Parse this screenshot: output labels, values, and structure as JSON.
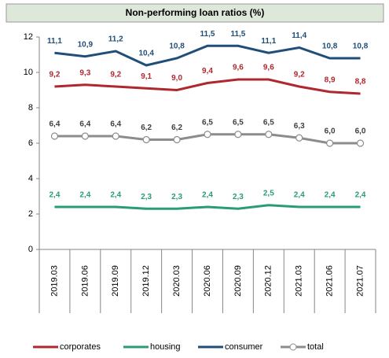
{
  "chart_data": {
    "type": "line",
    "title": "Non-performing loan ratios (%)",
    "categories": [
      "2019.03",
      "2019.06",
      "2019.09",
      "2019.12",
      "2020.03",
      "2020.06",
      "2020.09",
      "2020.12",
      "2021.03",
      "2021.06",
      "2021.07"
    ],
    "ylim": [
      0,
      12
    ],
    "yticks": [
      0,
      2,
      4,
      6,
      8,
      10,
      12
    ],
    "grid": false,
    "legend": "bottom",
    "series": [
      {
        "name": "corporates",
        "color": "#b0282f",
        "marker": false,
        "values": [
          9.2,
          9.3,
          9.2,
          9.1,
          9.0,
          9.4,
          9.6,
          9.6,
          9.2,
          8.9,
          8.8
        ],
        "value_labels": [
          "9,2",
          "9,3",
          "9,2",
          "9,1",
          "9,0",
          "9,4",
          "9,6",
          "9,6",
          "9,2",
          "8,9",
          "8,8"
        ]
      },
      {
        "name": "housing",
        "color": "#2a9b78",
        "marker": false,
        "values": [
          2.4,
          2.4,
          2.4,
          2.3,
          2.3,
          2.4,
          2.3,
          2.5,
          2.4,
          2.4,
          2.4
        ],
        "value_labels": [
          "2,4",
          "2,4",
          "2,4",
          "2,3",
          "2,3",
          "2,4",
          "2,3",
          "2,5",
          "2,4",
          "2,4",
          "2,4"
        ]
      },
      {
        "name": "consumer",
        "color": "#1f4e79",
        "marker": false,
        "values": [
          11.1,
          10.9,
          11.2,
          10.4,
          10.8,
          11.5,
          11.5,
          11.1,
          11.4,
          10.8,
          10.8
        ],
        "value_labels": [
          "11,1",
          "10,9",
          "11,2",
          "10,4",
          "10,8",
          "11,5",
          "11,5",
          "11,1",
          "11,4",
          "10,8",
          "10,8"
        ]
      },
      {
        "name": "total",
        "color": "#8c8c8c",
        "marker": true,
        "values": [
          6.4,
          6.4,
          6.4,
          6.2,
          6.2,
          6.5,
          6.5,
          6.5,
          6.3,
          6.0,
          6.0
        ],
        "value_labels": [
          "6,4",
          "6,4",
          "6,4",
          "6,2",
          "6,2",
          "6,5",
          "6,5",
          "6,5",
          "6,3",
          "6,0",
          "6,0"
        ]
      }
    ]
  }
}
